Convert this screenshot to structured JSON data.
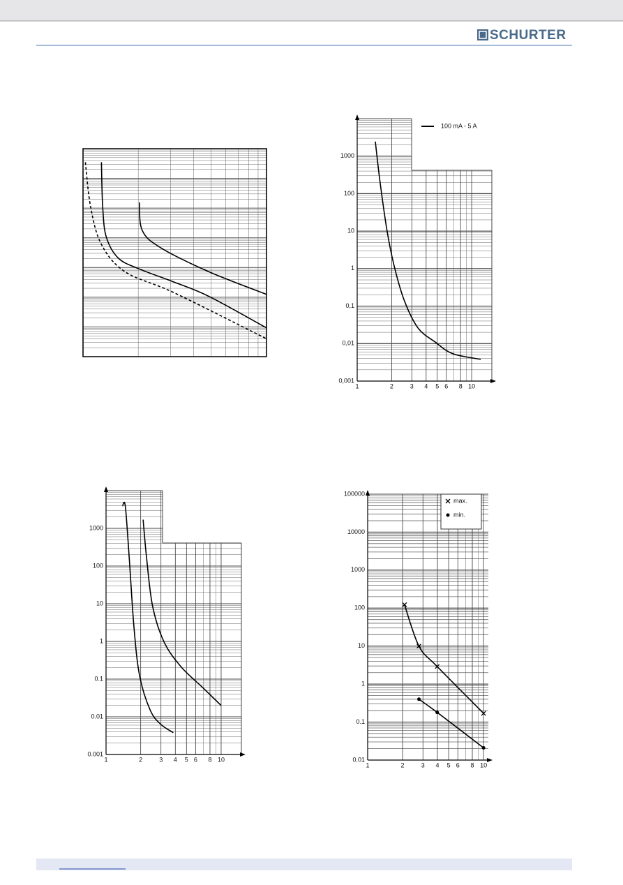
{
  "header": {
    "logo": "SCHURTER"
  },
  "chart_data": [
    {
      "type": "line",
      "log_x": true,
      "log_y": true,
      "xlim": [
        1,
        10
      ],
      "ylim": [
        0.001,
        10000
      ],
      "grid": true,
      "series": [
        {
          "color": "#000000",
          "dashed": false,
          "x": [
            2.03,
            2.1,
            2.64,
            4.88,
            10
          ],
          "values": [
            155,
            18,
            4.7,
            0.71,
            0.125
          ]
        },
        {
          "color": "#000000",
          "dashed": false,
          "x": [
            1.26,
            1.28,
            1.34,
            1.56,
            2.03,
            3.15,
            4.88,
            10
          ],
          "values": [
            3500,
            110,
            10.5,
            2.05,
            0.89,
            0.32,
            0.105,
            0.0093
          ]
        },
        {
          "color": "#000000",
          "dashed": true,
          "x": [
            1.03,
            1.1,
            1.26,
            1.7,
            3.15,
            10
          ],
          "values": [
            3500,
            110,
            6,
            0.71,
            0.14,
            0.004
          ]
        }
      ]
    },
    {
      "type": "line",
      "log_x": true,
      "log_y": true,
      "xlim": [
        1,
        15
      ],
      "ylim": [
        0.001,
        10000
      ],
      "grid": true,
      "xticks": [
        1,
        2,
        3,
        4,
        5,
        6,
        8,
        10
      ],
      "yticks": [
        1000,
        100,
        10,
        1,
        {
          "value": 0.1,
          "label": "0,1"
        },
        {
          "value": 0.01,
          "label": "0,01"
        },
        {
          "value": 0.001,
          "label": "0,001"
        }
      ],
      "series": [
        {
          "name": "100 mA - 5 A",
          "color": "#000000",
          "dashed": false,
          "x": [
            1.44,
            1.58,
            1.82,
            2.1,
            2.58,
            3.4,
            4.8,
            6.8,
            12
          ],
          "values": [
            2450,
            215,
            10.5,
            1.2,
            0.14,
            0.026,
            0.011,
            0.0054,
            0.0038
          ]
        }
      ]
    },
    {
      "type": "line",
      "log_x": true,
      "log_y": true,
      "xlim": [
        1,
        15
      ],
      "ylim": [
        0.001,
        10000
      ],
      "grid": true,
      "xticks": [
        1,
        2,
        3,
        4,
        5,
        6,
        8,
        10
      ],
      "yticks": [
        1000,
        100,
        10,
        1,
        0.1,
        0.01,
        0.001
      ],
      "series": [
        {
          "color": "#000000",
          "dashed": false,
          "x": [
            1.39,
            1.47,
            1.59,
            1.75,
            1.96,
            2.42,
            2.99,
            3.84
          ],
          "values": [
            3900,
            3900,
            166,
            2.3,
            0.12,
            0.015,
            0.0063,
            0.0038
          ]
        },
        {
          "color": "#000000",
          "dashed": false,
          "x": [
            2.1,
            2.25,
            2.54,
            3.2,
            4.5,
            6.9,
            10
          ],
          "values": [
            1700,
            166,
            8.5,
            0.95,
            0.21,
            0.06,
            0.02
          ]
        }
      ]
    },
    {
      "type": "line",
      "log_x": true,
      "log_y": true,
      "xlim": [
        1,
        11
      ],
      "ylim": [
        0.01,
        100000
      ],
      "grid": true,
      "xticks": [
        1,
        2,
        3,
        4,
        5,
        6,
        8,
        10
      ],
      "yticks": [
        100000,
        10000,
        1000,
        100,
        10,
        1,
        0.1,
        0.01
      ],
      "series": [
        {
          "name": "max.",
          "marker": "x",
          "color": "#000000",
          "x": [
            2.08,
            2.77,
            3.98,
            10
          ],
          "values": [
            123,
            10,
            2.9,
            0.17
          ]
        },
        {
          "name": "min.",
          "marker": "dot",
          "color": "#000000",
          "x": [
            2.77,
            3.98,
            10
          ],
          "values": [
            0.4,
            0.18,
            0.021
          ]
        }
      ]
    }
  ]
}
